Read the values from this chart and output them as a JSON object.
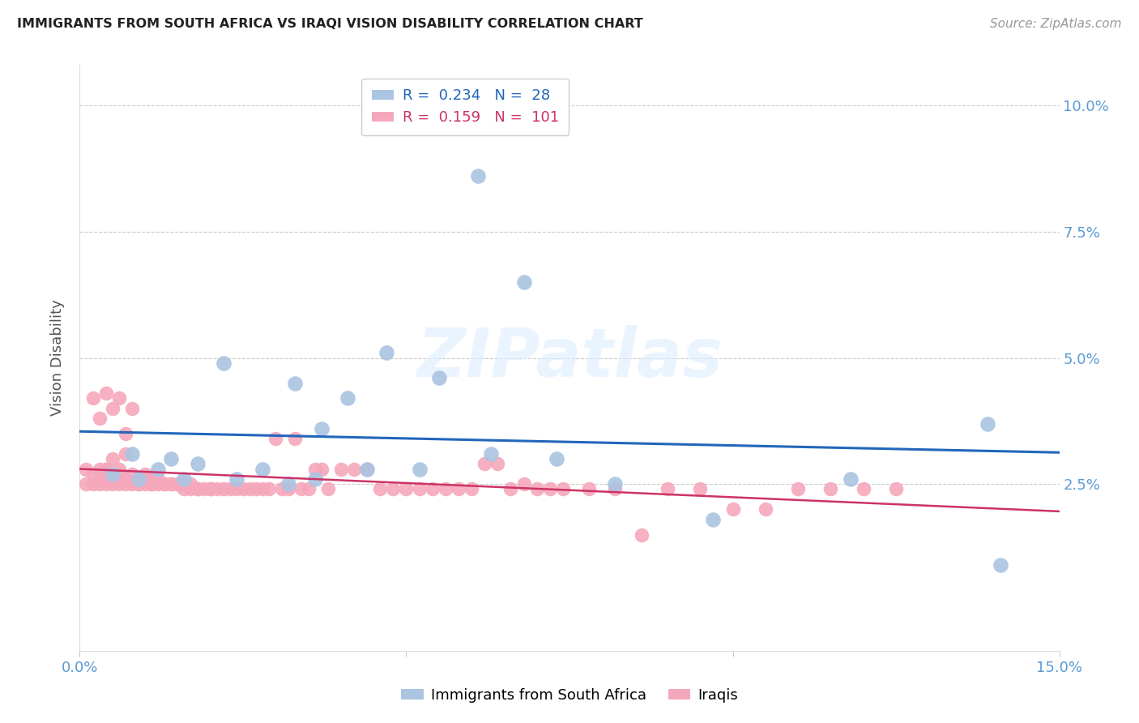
{
  "title": "IMMIGRANTS FROM SOUTH AFRICA VS IRAQI VISION DISABILITY CORRELATION CHART",
  "source": "Source: ZipAtlas.com",
  "ylabel": "Vision Disability",
  "xlim": [
    0.0,
    0.15
  ],
  "ylim": [
    -0.008,
    0.108
  ],
  "y_ticks": [
    0.025,
    0.05,
    0.075,
    0.1
  ],
  "y_tick_labels": [
    "2.5%",
    "5.0%",
    "7.5%",
    "10.0%"
  ],
  "blue_R": 0.234,
  "blue_N": 28,
  "pink_R": 0.159,
  "pink_N": 101,
  "blue_color": "#aac4e2",
  "pink_color": "#f5a8bc",
  "blue_line_color": "#2266bb",
  "pink_line_color": "#cc3366",
  "legend_label_blue": "Immigrants from South Africa",
  "legend_label_pink": "Iraqis",
  "watermark": "ZIPatlas",
  "blue_x": [
    0.005,
    0.008,
    0.009,
    0.012,
    0.014,
    0.016,
    0.018,
    0.022,
    0.024,
    0.028,
    0.032,
    0.033,
    0.036,
    0.037,
    0.041,
    0.044,
    0.047,
    0.052,
    0.055,
    0.061,
    0.063,
    0.068,
    0.073,
    0.082,
    0.097,
    0.118,
    0.139,
    0.141
  ],
  "blue_y": [
    0.027,
    0.031,
    0.026,
    0.028,
    0.03,
    0.026,
    0.029,
    0.049,
    0.026,
    0.028,
    0.025,
    0.045,
    0.026,
    0.036,
    0.042,
    0.028,
    0.051,
    0.028,
    0.046,
    0.086,
    0.031,
    0.065,
    0.03,
    0.025,
    0.018,
    0.026,
    0.037,
    0.009
  ],
  "pink_x": [
    0.001,
    0.001,
    0.002,
    0.002,
    0.002,
    0.003,
    0.003,
    0.003,
    0.004,
    0.004,
    0.004,
    0.005,
    0.005,
    0.005,
    0.006,
    0.006,
    0.006,
    0.007,
    0.007,
    0.007,
    0.008,
    0.008,
    0.009,
    0.009,
    0.01,
    0.01,
    0.011,
    0.011,
    0.012,
    0.013,
    0.014,
    0.015,
    0.016,
    0.017,
    0.018,
    0.019,
    0.02,
    0.021,
    0.022,
    0.023,
    0.024,
    0.025,
    0.026,
    0.027,
    0.028,
    0.029,
    0.03,
    0.031,
    0.032,
    0.033,
    0.034,
    0.035,
    0.036,
    0.037,
    0.038,
    0.04,
    0.042,
    0.044,
    0.046,
    0.048,
    0.05,
    0.052,
    0.054,
    0.056,
    0.058,
    0.06,
    0.062,
    0.064,
    0.066,
    0.068,
    0.07,
    0.072,
    0.074,
    0.078,
    0.082,
    0.086,
    0.09,
    0.095,
    0.1,
    0.105,
    0.11,
    0.115,
    0.12,
    0.125,
    0.003,
    0.004,
    0.005,
    0.006,
    0.007,
    0.008,
    0.009,
    0.01,
    0.011,
    0.012,
    0.013,
    0.014,
    0.015,
    0.016,
    0.017,
    0.018,
    0.02
  ],
  "pink_y": [
    0.025,
    0.028,
    0.025,
    0.027,
    0.042,
    0.025,
    0.026,
    0.038,
    0.025,
    0.028,
    0.043,
    0.025,
    0.027,
    0.03,
    0.025,
    0.027,
    0.028,
    0.025,
    0.026,
    0.031,
    0.025,
    0.027,
    0.025,
    0.026,
    0.025,
    0.027,
    0.025,
    0.026,
    0.025,
    0.025,
    0.025,
    0.025,
    0.024,
    0.024,
    0.024,
    0.024,
    0.024,
    0.024,
    0.024,
    0.024,
    0.024,
    0.024,
    0.024,
    0.024,
    0.024,
    0.024,
    0.034,
    0.024,
    0.024,
    0.034,
    0.024,
    0.024,
    0.028,
    0.028,
    0.024,
    0.028,
    0.028,
    0.028,
    0.024,
    0.024,
    0.024,
    0.024,
    0.024,
    0.024,
    0.024,
    0.024,
    0.029,
    0.029,
    0.024,
    0.025,
    0.024,
    0.024,
    0.024,
    0.024,
    0.024,
    0.015,
    0.024,
    0.024,
    0.02,
    0.02,
    0.024,
    0.024,
    0.024,
    0.024,
    0.028,
    0.028,
    0.04,
    0.042,
    0.035,
    0.04,
    0.025,
    0.026,
    0.025,
    0.026,
    0.025,
    0.025,
    0.025,
    0.025,
    0.025,
    0.024,
    0.024
  ]
}
